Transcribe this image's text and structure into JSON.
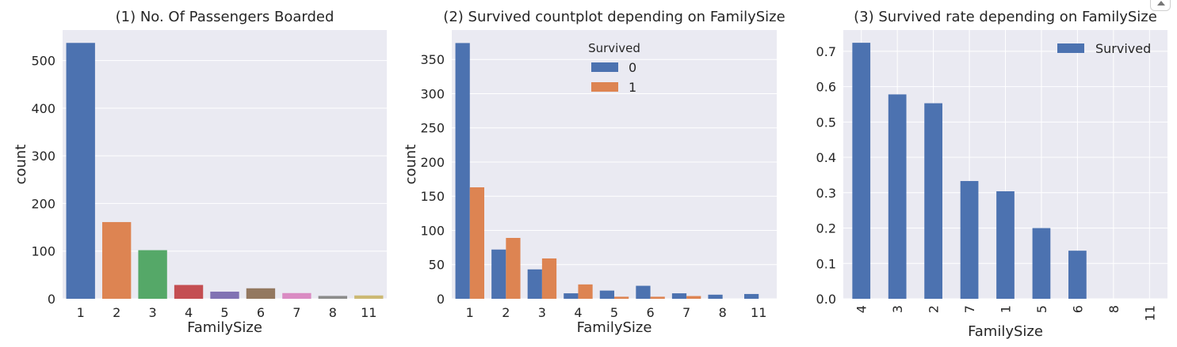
{
  "chart_data": [
    {
      "type": "bar",
      "title": "(1) No. Of Passengers Boarded",
      "xlabel": "FamilySize",
      "ylabel": "count",
      "categories": [
        "1",
        "2",
        "3",
        "4",
        "5",
        "6",
        "7",
        "8",
        "11"
      ],
      "values": [
        537,
        161,
        102,
        29,
        15,
        22,
        12,
        6,
        7
      ],
      "colors": [
        "#4c72b0",
        "#dd8452",
        "#55a868",
        "#c44e52",
        "#8172b3",
        "#937860",
        "#da8bc3",
        "#8c8c8c",
        "#ccb974"
      ],
      "ylim": [
        0,
        564
      ],
      "yticks": [
        "0",
        "100",
        "200",
        "300",
        "400",
        "500"
      ],
      "grid": true
    },
    {
      "type": "bar",
      "title": "(2) Survived countplot depending on FamilySize",
      "xlabel": "FamilySize",
      "ylabel": "count",
      "categories": [
        "1",
        "2",
        "3",
        "4",
        "5",
        "6",
        "7",
        "8",
        "11"
      ],
      "legend": {
        "title": "Survived",
        "placement": "top-center"
      },
      "series": [
        {
          "name": "0",
          "color": "#4c72b0",
          "values": [
            374,
            72,
            43,
            8,
            12,
            19,
            8,
            6,
            7
          ]
        },
        {
          "name": "1",
          "color": "#dd8452",
          "values": [
            163,
            89,
            59,
            21,
            3,
            3,
            4,
            0,
            0
          ]
        }
      ],
      "ylim": [
        0,
        393
      ],
      "yticks": [
        "0",
        "50",
        "100",
        "150",
        "200",
        "250",
        "300",
        "350"
      ],
      "grid": true
    },
    {
      "type": "bar",
      "title": "(3) Survived rate depending on FamilySize",
      "xlabel": "FamilySize",
      "ylabel": "",
      "categories": [
        "4",
        "3",
        "2",
        "7",
        "1",
        "5",
        "6",
        "8",
        "11"
      ],
      "legend": {
        "placement": "top-right"
      },
      "series": [
        {
          "name": "Survived",
          "color": "#4c72b0",
          "values": [
            0.724,
            0.578,
            0.553,
            0.333,
            0.304,
            0.2,
            0.136,
            0.0,
            0.0
          ]
        }
      ],
      "ylim": [
        0,
        0.76
      ],
      "yticks": [
        "0.0",
        "0.1",
        "0.2",
        "0.3",
        "0.4",
        "0.5",
        "0.6",
        "0.7"
      ],
      "xtick_rotation": 90,
      "grid": true
    }
  ]
}
